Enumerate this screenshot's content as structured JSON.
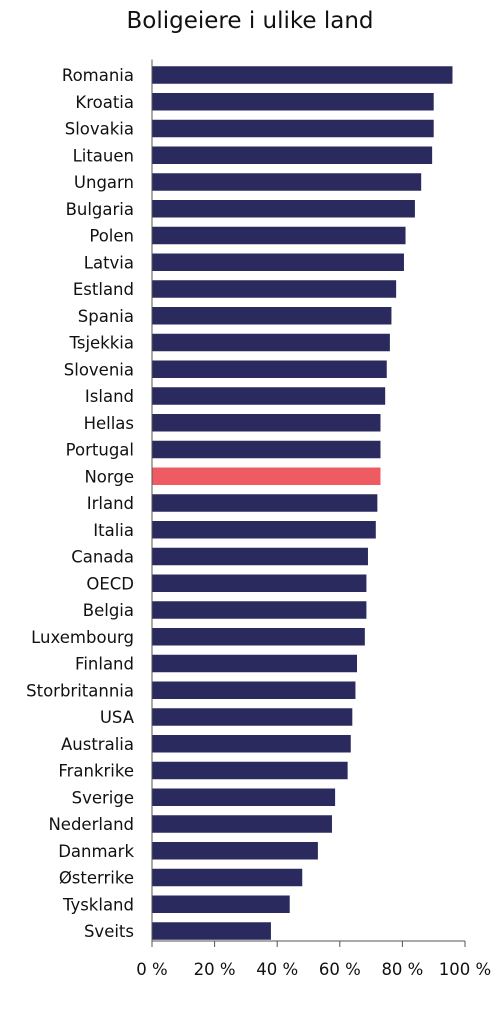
{
  "chart_data": {
    "type": "bar",
    "orientation": "horizontal",
    "title": "Boligeiere i ulike land",
    "xlabel": "",
    "ylabel": "",
    "xlim": [
      0,
      100
    ],
    "x_ticks": [
      0,
      20,
      40,
      60,
      80,
      100
    ],
    "x_tick_labels": [
      "0 %",
      "20 %",
      "40 %",
      "60 %",
      "80 %",
      "100 %"
    ],
    "grid": false,
    "colors": {
      "bar": "#2b2a5e",
      "highlight": "#ef5b63",
      "axis": "#555555",
      "text": "#111111"
    },
    "highlight_category": "Norge",
    "categories": [
      "Romania",
      "Kroatia",
      "Slovakia",
      "Litauen",
      "Ungarn",
      "Bulgaria",
      "Polen",
      "Latvia",
      "Estland",
      "Spania",
      "Tsjekkia",
      "Slovenia",
      "Island",
      "Hellas",
      "Portugal",
      "Norge",
      "Irland",
      "Italia",
      "Canada",
      "OECD",
      "Belgia",
      "Luxembourg",
      "Finland",
      "Storbritannia",
      "USA",
      "Australia",
      "Frankrike",
      "Sverige",
      "Nederland",
      "Danmark",
      "Østerrike",
      "Tyskland",
      "Sveits"
    ],
    "values": [
      96.0,
      90.0,
      90.0,
      89.5,
      86.0,
      84.0,
      81.0,
      80.5,
      78.0,
      76.5,
      76.0,
      75.0,
      74.5,
      73.0,
      73.0,
      73.0,
      72.0,
      71.5,
      69.0,
      68.5,
      68.5,
      68.0,
      65.5,
      65.0,
      64.0,
      63.5,
      62.5,
      58.5,
      57.5,
      53.0,
      48.0,
      44.0,
      38.0
    ]
  }
}
